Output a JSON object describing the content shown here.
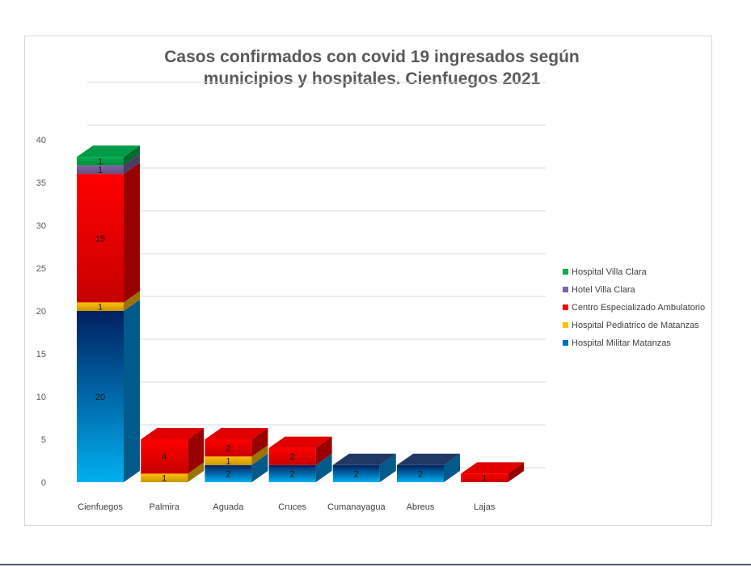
{
  "chart_data": {
    "type": "bar",
    "stacked": true,
    "three_d": true,
    "title_lines": [
      "Casos confirmados con covid 19 ingresados según",
      "municipios y hospitales. Cienfuegos 2021"
    ],
    "xlabel": "",
    "ylabel": "",
    "categories": [
      "Cienfuegos",
      "Palmira",
      "Aguada",
      "Cruces",
      "Cumanayagua",
      "Abreus",
      "Lajas"
    ],
    "ylim": [
      0,
      40
    ],
    "yticks": [
      0,
      5,
      10,
      15,
      20,
      25,
      30,
      35,
      40
    ],
    "grid": true,
    "legend_position": "right",
    "series": [
      {
        "name": "Hospital Militar Matanzas",
        "color": "#0070c0",
        "values": [
          20,
          0,
          2,
          2,
          2,
          2,
          0
        ]
      },
      {
        "name": "Hospital Pediatrico de Matanzas",
        "color": "#ffc000",
        "values": [
          1,
          1,
          1,
          0,
          0,
          0,
          0
        ]
      },
      {
        "name": "Centro Especializado Ambulatorio",
        "color": "#ff0000",
        "values": [
          15,
          4,
          2,
          2,
          0,
          0,
          1
        ]
      },
      {
        "name": "Hotel Villa Clara",
        "color": "#8064a2",
        "values": [
          1,
          0,
          0,
          0,
          0,
          0,
          0
        ]
      },
      {
        "name": "Hospital Villa Clara",
        "color": "#00b050",
        "values": [
          1,
          0,
          0,
          0,
          0,
          0,
          0
        ]
      }
    ]
  }
}
